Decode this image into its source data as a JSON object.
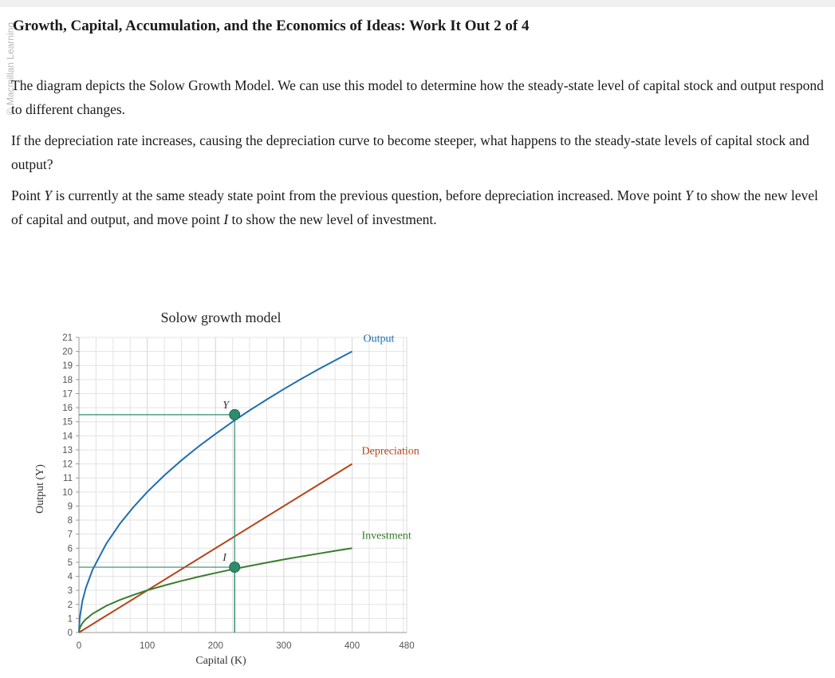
{
  "brand": "© Macmillan Learning",
  "title": "Growth, Capital, Accumulation, and the Economics of Ideas: Work It Out 2 of 4",
  "paragraphs": {
    "p1": "The diagram depicts the Solow Growth Model. We can use this model to determine how the steady-state level of capital stock and output respond to different changes.",
    "p2": "If the depreciation rate increases, causing the depreciation curve to become steeper, what happens to the steady-state levels of capital stock and output?",
    "p3": {
      "a": "Point ",
      "y1": "Y",
      "b": " is currently at the same steady state point from the previous question, before depreciation increased. Move point ",
      "y2": "Y",
      "c": " to show the new level of capital and output, and move point ",
      "i1": "I",
      "d": " to show the new level of investment."
    }
  },
  "chart_data": {
    "type": "line",
    "title": "Solow growth model",
    "xlabel": "Capital (K)",
    "ylabel": "Output (Y)",
    "xlim": [
      0,
      480
    ],
    "ylim": [
      0,
      21
    ],
    "x_ticks": [
      0,
      100,
      200,
      300,
      400,
      480
    ],
    "y_ticks": [
      0,
      1,
      2,
      3,
      4,
      5,
      6,
      7,
      8,
      9,
      10,
      11,
      12,
      13,
      14,
      15,
      16,
      17,
      18,
      19,
      20,
      21
    ],
    "grid": true,
    "series": [
      {
        "name": "Output",
        "color": "#1f6fb0",
        "x": [
          0,
          1,
          5,
          10,
          20,
          40,
          60,
          80,
          100,
          125,
          150,
          175,
          200,
          225,
          250,
          275,
          300,
          325,
          350,
          375,
          400
        ],
        "y": [
          0,
          1,
          2.24,
          3.16,
          4.47,
          6.32,
          7.75,
          8.94,
          10.0,
          11.18,
          12.25,
          13.23,
          14.14,
          15.0,
          15.81,
          16.58,
          17.32,
          18.03,
          18.71,
          19.36,
          20.0
        ]
      },
      {
        "name": "Depreciation",
        "color": "#b5451b",
        "x": [
          0,
          400
        ],
        "y": [
          0,
          12
        ]
      },
      {
        "name": "Investment",
        "color": "#3a7d2c",
        "x": [
          0,
          1,
          5,
          10,
          20,
          40,
          60,
          80,
          100,
          125,
          150,
          175,
          200,
          225,
          250,
          275,
          300,
          325,
          350,
          375,
          400
        ],
        "y": [
          0,
          0.3,
          0.67,
          0.95,
          1.34,
          1.9,
          2.32,
          2.68,
          3.0,
          3.35,
          3.67,
          3.97,
          4.24,
          4.5,
          4.74,
          4.97,
          5.2,
          5.41,
          5.61,
          5.81,
          6.0
        ]
      }
    ],
    "points": [
      {
        "label": "Y",
        "x": 228,
        "y": 15.5,
        "color": "#2e8b6e"
      },
      {
        "label": "I",
        "x": 228,
        "y": 4.65,
        "color": "#2e8b6e"
      }
    ]
  }
}
